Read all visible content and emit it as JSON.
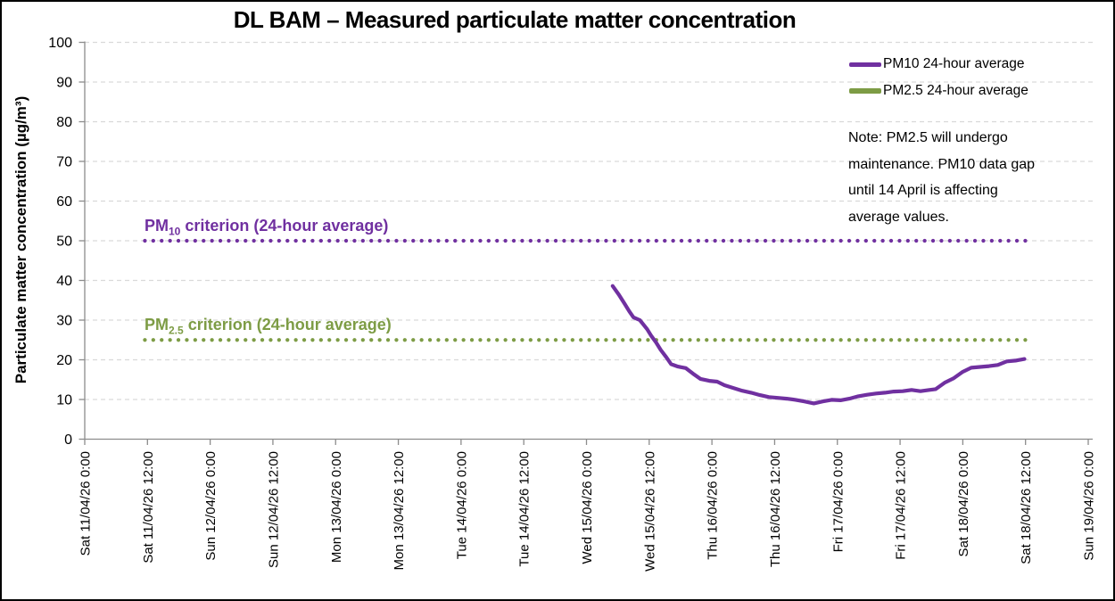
{
  "note": "Note: PM2.5 will undergo\nmaintenance. PM10 data gap\nuntil 14 April is affecting\naverage values.",
  "legend": [
    {
      "label": "PM10 24-hour average",
      "color": "#7030A0"
    },
    {
      "label": "PM2.5 24-hour average",
      "color": "#7D9C45"
    }
  ],
  "colors": {
    "purple": "#7030A0",
    "olive_green": "#7D9C45",
    "gridline": "#D9D9D9",
    "axis": "#8C8C8C",
    "text": "#000000",
    "background": "#FFFFFF"
  },
  "chart_data": {
    "type": "line",
    "title": "DL BAM – Measured particulate matter concentration",
    "xlabel": "",
    "ylabel": "Particulate matter concentration (µg/m³)",
    "ylim": [
      0,
      100
    ],
    "y_ticks": [
      0,
      10,
      20,
      30,
      40,
      50,
      60,
      70,
      80,
      90,
      100
    ],
    "x_ticks": [
      "Sat 11/04/26 0:00",
      "Sat 11/04/26 12:00",
      "Sun 12/04/26 0:00",
      "Sun 12/04/26 12:00",
      "Mon 13/04/26 0:00",
      "Mon 13/04/26 12:00",
      "Tue 14/04/26 0:00",
      "Tue 14/04/26 12:00",
      "Wed 15/04/26 0:00",
      "Wed 15/04/26 12:00",
      "Thu 16/04/26 0:00",
      "Thu 16/04/26 12:00",
      "Fri 17/04/26 0:00",
      "Fri 17/04/26 12:00",
      "Sat 18/04/26 0:00",
      "Sat 18/04/26 12:00",
      "Sun 19/04/26 0:00"
    ],
    "x_tick_interval_hours": 12,
    "x_axis_total_hours": 192,
    "grid": "horizontal dashed, no vertical gridlines",
    "legend_position": "top-right inside plot",
    "series": [
      {
        "name": "PM10 24-hour average",
        "color": "#7030A0",
        "style": "solid",
        "units": "µg/m³",
        "points_hours_from_axis_start_vs_value": [
          [
            101.0,
            38.6
          ],
          [
            102.2,
            36.4
          ],
          [
            103.3,
            34.1
          ],
          [
            104.2,
            32.2
          ],
          [
            105.0,
            30.7
          ],
          [
            106.2,
            30.0
          ],
          [
            106.7,
            29.2
          ],
          [
            107.6,
            27.7
          ],
          [
            108.4,
            26.0
          ],
          [
            109.3,
            24.4
          ],
          [
            110.2,
            22.5
          ],
          [
            111.3,
            20.6
          ],
          [
            112.2,
            18.9
          ],
          [
            113.5,
            18.3
          ],
          [
            115.0,
            17.9
          ],
          [
            116.4,
            16.5
          ],
          [
            117.8,
            15.2
          ],
          [
            119.5,
            14.7
          ],
          [
            121.0,
            14.5
          ],
          [
            122.4,
            13.6
          ],
          [
            124.1,
            12.9
          ],
          [
            125.8,
            12.2
          ],
          [
            127.5,
            11.7
          ],
          [
            129.2,
            11.1
          ],
          [
            130.9,
            10.6
          ],
          [
            132.6,
            10.4
          ],
          [
            134.3,
            10.2
          ],
          [
            136.0,
            9.9
          ],
          [
            137.7,
            9.5
          ],
          [
            139.5,
            9.0
          ],
          [
            141.2,
            9.5
          ],
          [
            142.9,
            9.9
          ],
          [
            144.6,
            9.8
          ],
          [
            146.3,
            10.2
          ],
          [
            148.0,
            10.8
          ],
          [
            149.7,
            11.2
          ],
          [
            151.4,
            11.5
          ],
          [
            153.1,
            11.7
          ],
          [
            154.8,
            12.0
          ],
          [
            156.5,
            12.1
          ],
          [
            158.2,
            12.4
          ],
          [
            159.9,
            12.1
          ],
          [
            161.6,
            12.4
          ],
          [
            162.8,
            12.6
          ],
          [
            164.5,
            14.2
          ],
          [
            166.2,
            15.3
          ],
          [
            167.9,
            16.9
          ],
          [
            169.6,
            18.0
          ],
          [
            171.3,
            18.2
          ],
          [
            173.0,
            18.4
          ],
          [
            174.7,
            18.7
          ],
          [
            176.4,
            19.6
          ],
          [
            178.1,
            19.8
          ],
          [
            179.8,
            20.2
          ]
        ]
      },
      {
        "name": "PM2.5 24-hour average",
        "color": "#7D9C45",
        "style": "solid",
        "units": "µg/m³",
        "points_hours_from_axis_start_vs_value": []
      }
    ],
    "reference_lines": [
      {
        "value": 50,
        "color": "#7030A0",
        "style": "dotted",
        "t_start_hours": 11.5,
        "t_end_hours": 180.8,
        "label_prefix": "PM",
        "label_sub": "10",
        "label_rest": " criterion (24-hour average)"
      },
      {
        "value": 25,
        "color": "#7D9C45",
        "style": "dotted",
        "t_start_hours": 11.5,
        "t_end_hours": 180.8,
        "label_prefix": "PM",
        "label_sub": "2.5",
        "label_rest": " criterion (24-hour average)"
      }
    ]
  }
}
